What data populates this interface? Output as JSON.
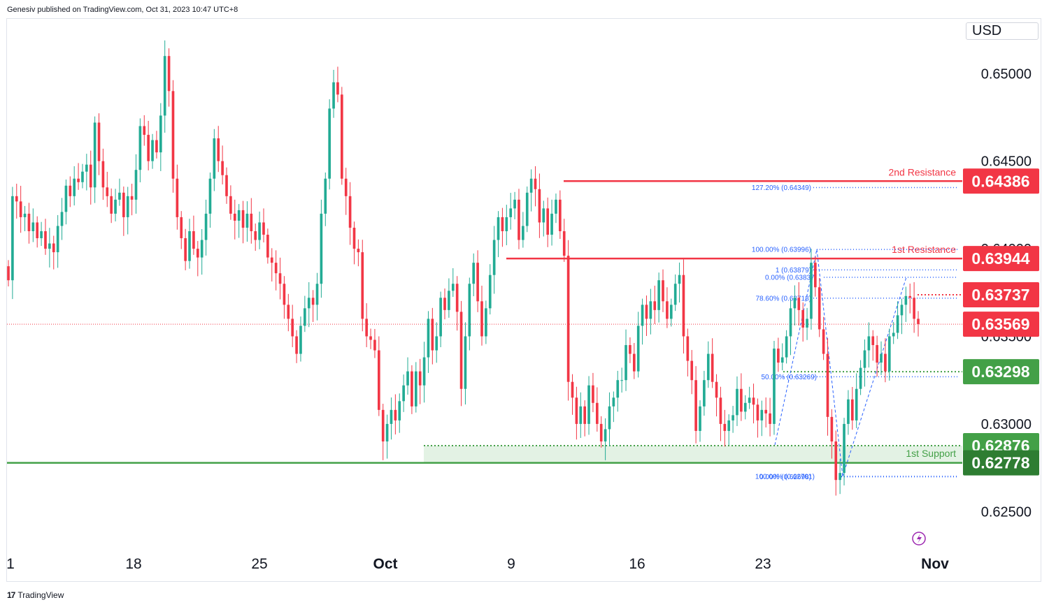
{
  "attribution": "Genesiv published on TradingView.com, Oct 31, 2023 10:47 UTC+8",
  "currency": "USD",
  "footer": {
    "brand": "TradingView",
    "logo_icon": "tradingview-logo-icon"
  },
  "colors": {
    "up": "#22ab94",
    "down": "#f23645",
    "resistance": "#f23645",
    "support": "#43a047",
    "support_zone": "#e3f2e4",
    "fib": "#2962ff"
  },
  "chart_data": {
    "type": "candlestick",
    "x_tick_labels": [
      "1",
      "18",
      "25",
      "Oct",
      "9",
      "16",
      "23",
      "Nov"
    ],
    "y_tick_labels": [
      "0.65000",
      "0.64500",
      "0.64000",
      "0.63500",
      "0.63000",
      "0.62500"
    ],
    "ylim": [
      0.6227,
      0.6532
    ],
    "last_price": 0.63569,
    "close_series": [
      0.6382,
      0.643,
      0.6427,
      0.6418,
      0.642,
      0.641,
      0.6415,
      0.6406,
      0.641,
      0.64,
      0.6403,
      0.6398,
      0.6413,
      0.6421,
      0.6436,
      0.643,
      0.644,
      0.6438,
      0.6444,
      0.6448,
      0.6435,
      0.6472,
      0.645,
      0.6435,
      0.643,
      0.642,
      0.6428,
      0.6432,
      0.6418,
      0.643,
      0.6428,
      0.6445,
      0.647,
      0.6465,
      0.645,
      0.6462,
      0.6455,
      0.6476,
      0.651,
      0.649,
      0.644,
      0.6418,
      0.6406,
      0.6393,
      0.641,
      0.64,
      0.6395,
      0.6405,
      0.642,
      0.644,
      0.6463,
      0.645,
      0.6442,
      0.643,
      0.642,
      0.6416,
      0.6422,
      0.6412,
      0.642,
      0.641,
      0.6405,
      0.6415,
      0.6408,
      0.6395,
      0.6392,
      0.6386,
      0.638,
      0.6368,
      0.636,
      0.635,
      0.634,
      0.6356,
      0.6366,
      0.6372,
      0.6368,
      0.638,
      0.642,
      0.644,
      0.648,
      0.6495,
      0.6488,
      0.644,
      0.643,
      0.6412,
      0.64,
      0.6398,
      0.636,
      0.635,
      0.6348,
      0.6342,
      0.6308,
      0.629,
      0.63,
      0.6308,
      0.6302,
      0.6313,
      0.6322,
      0.633,
      0.631,
      0.633,
      0.6322,
      0.6338,
      0.636,
      0.6342,
      0.635,
      0.6372,
      0.6365,
      0.6376,
      0.638,
      0.6364,
      0.632,
      0.635,
      0.638,
      0.6392,
      0.637,
      0.635,
      0.6366,
      0.6385,
      0.6405,
      0.6418,
      0.641,
      0.6418,
      0.6423,
      0.6428,
      0.6405,
      0.6413,
      0.6432,
      0.644,
      0.6434,
      0.6415,
      0.6423,
      0.6408,
      0.642,
      0.6428,
      0.641,
      0.6396,
      0.6324,
      0.6315,
      0.63,
      0.631,
      0.63,
      0.6322,
      0.6312,
      0.63,
      0.629,
      0.6297,
      0.631,
      0.6315,
      0.6325,
      0.6325,
      0.6345,
      0.634,
      0.633,
      0.6356,
      0.6368,
      0.636,
      0.637,
      0.6365,
      0.6382,
      0.637,
      0.636,
      0.6368,
      0.638,
      0.6385,
      0.635,
      0.6336,
      0.6325,
      0.6296,
      0.631,
      0.6325,
      0.634,
      0.6324,
      0.6315,
      0.63,
      0.6296,
      0.6302,
      0.6305,
      0.632,
      0.6307,
      0.6312,
      0.6315,
      0.6311,
      0.6302,
      0.6308,
      0.6306,
      0.63,
      0.6343,
      0.6335,
      0.6338,
      0.635,
      0.6366,
      0.6372,
      0.6365,
      0.6355,
      0.636,
      0.6392,
      0.6378,
      0.6354,
      0.634,
      0.6304,
      0.629,
      0.6268,
      0.6272,
      0.63,
      0.6314,
      0.6302,
      0.632,
      0.6332,
      0.6342,
      0.635,
      0.6345,
      0.6335,
      0.634,
      0.633,
      0.635,
      0.6352,
      0.6362,
      0.6368,
      0.6373,
      0.6372,
      0.636,
      0.6357
    ],
    "levels": [
      {
        "name": "2nd Resistance",
        "value": 0.64386,
        "label": "0.64386",
        "kind": "resistance"
      },
      {
        "name": "1st Resistance",
        "value": 0.63944,
        "label": "0.63944",
        "kind": "resistance"
      },
      {
        "name": "",
        "value": 0.63737,
        "label": "0.63737",
        "kind": "resistance-dotted"
      },
      {
        "name": "",
        "value": 0.63298,
        "label": "0.63298",
        "kind": "support-dotted"
      },
      {
        "name": "1st Support",
        "value": 0.62876,
        "label": "0.62876",
        "kind": "support-zone"
      },
      {
        "name": "",
        "value": 0.62778,
        "label": "0.62778",
        "kind": "support-solid"
      }
    ],
    "fib_labels": [
      {
        "text": "127.20% (0.64349)",
        "value": 0.64349
      },
      {
        "text": "100.00% (0.63996)",
        "value": 0.63996
      },
      {
        "text": "1 (0.63879)",
        "value": 0.63879
      },
      {
        "text": "0.00% (0.63837)",
        "value": 0.63837
      },
      {
        "text": "78.60% (0.63718)",
        "value": 0.63718
      },
      {
        "text": "50.00% (0.63269)",
        "value": 0.63269
      },
      {
        "text": "100.00% (0.62701)",
        "value": 0.62701
      },
      {
        "text": "0.00% (0.62698)",
        "value": 0.62698
      }
    ]
  }
}
